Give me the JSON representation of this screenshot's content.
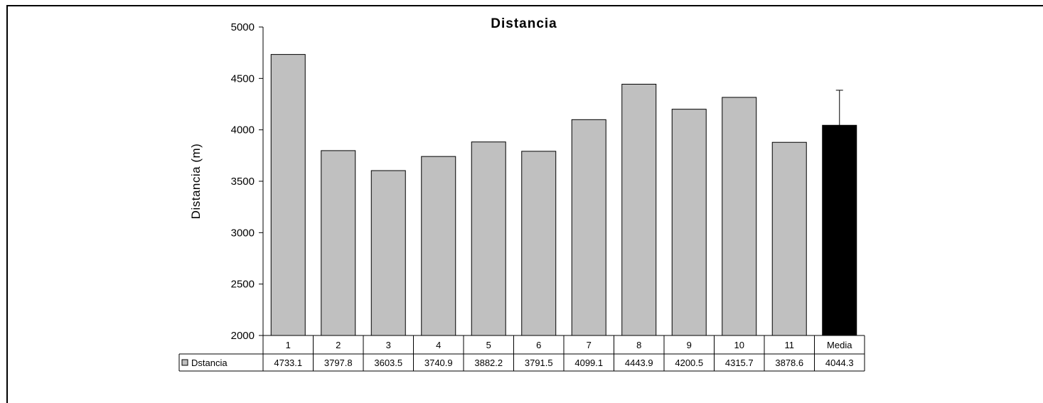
{
  "chart_data": {
    "type": "bar",
    "title": "Distancia",
    "ylabel": "Distancia (m)",
    "xlabel": "",
    "ylim": [
      2000,
      5000
    ],
    "yticks": [
      2000,
      2500,
      3000,
      3500,
      4000,
      4500,
      5000
    ],
    "categories": [
      "1",
      "2",
      "3",
      "4",
      "5",
      "6",
      "7",
      "8",
      "9",
      "10",
      "11",
      "Media"
    ],
    "series": [
      {
        "name": "Dstancia",
        "values": [
          4733.1,
          3797.8,
          3603.5,
          3740.9,
          3882.2,
          3791.5,
          4099.1,
          4443.9,
          4200.5,
          4315.7,
          3878.6,
          4044.3
        ],
        "value_labels": [
          "4733.1",
          "3797.8",
          "3603.5",
          "3740.9",
          "3882.2",
          "3791.5",
          "4099.1",
          "4443.9",
          "4200.5",
          "4315.7",
          "3878.6",
          "4044.3"
        ]
      }
    ],
    "error_bar": {
      "category": "Media",
      "upper": 4385
    },
    "grid": false,
    "legend": "data-table",
    "data_table": true,
    "colors": {
      "bar": "#c0c0c0",
      "mean_bar": "#000000",
      "outline": "#000000"
    }
  }
}
